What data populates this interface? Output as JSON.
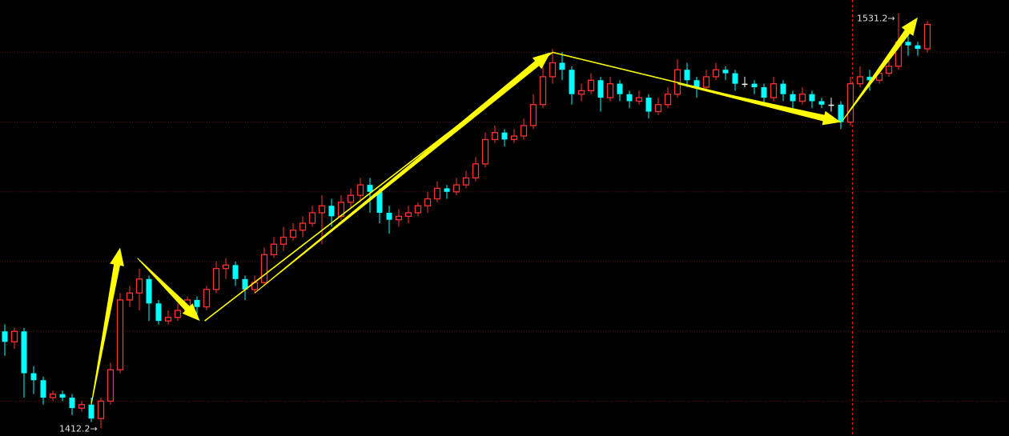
{
  "chart_data": {
    "type": "candlestick",
    "title": "",
    "xlabel": "",
    "ylabel": "",
    "ylim": [
      1410,
      1535
    ],
    "grid_levels": [
      1420,
      1440,
      1460,
      1480,
      1500,
      1520
    ],
    "grid": true,
    "colors": {
      "background": "#000000",
      "up": "#ff3232",
      "down": "#00ffff",
      "doji": "#ffffff",
      "grid": "#5a1414",
      "annotation": "#ffff00",
      "marker_line": "#ff2020"
    },
    "ohlc": [
      [
        1440,
        1442,
        1433,
        1437
      ],
      [
        1437,
        1441,
        1435,
        1440
      ],
      [
        1440,
        1441,
        1421,
        1428
      ],
      [
        1428,
        1430,
        1422,
        1426
      ],
      [
        1426,
        1427,
        1419,
        1421
      ],
      [
        1421,
        1423,
        1420,
        1422
      ],
      [
        1422,
        1423,
        1420,
        1421
      ],
      [
        1421,
        1422,
        1416,
        1418
      ],
      [
        1418,
        1420,
        1417,
        1419
      ],
      [
        1419,
        1421,
        1414,
        1415
      ],
      [
        1415,
        1421,
        1412.2,
        1420
      ],
      [
        1420,
        1431,
        1419,
        1429
      ],
      [
        1429,
        1451,
        1428,
        1449
      ],
      [
        1449,
        1453,
        1447,
        1451
      ],
      [
        1451,
        1458,
        1446,
        1455
      ],
      [
        1455,
        1456,
        1443,
        1448
      ],
      [
        1448,
        1449,
        1442,
        1443
      ],
      [
        1443,
        1446,
        1442,
        1444
      ],
      [
        1444,
        1448,
        1443,
        1446
      ],
      [
        1446,
        1450,
        1445,
        1449
      ],
      [
        1449,
        1450,
        1444,
        1447
      ],
      [
        1447,
        1453,
        1446,
        1452
      ],
      [
        1452,
        1460,
        1451,
        1458
      ],
      [
        1458,
        1461,
        1455,
        1459
      ],
      [
        1459,
        1460,
        1453,
        1455
      ],
      [
        1455,
        1456,
        1449,
        1452
      ],
      [
        1452,
        1456,
        1451,
        1454
      ],
      [
        1454,
        1464,
        1453,
        1462
      ],
      [
        1462,
        1467,
        1461,
        1465
      ],
      [
        1465,
        1470,
        1463,
        1467
      ],
      [
        1467,
        1471,
        1466,
        1469
      ],
      [
        1469,
        1473,
        1467,
        1471
      ],
      [
        1471,
        1476,
        1470,
        1474
      ],
      [
        1474,
        1479,
        1465,
        1476
      ],
      [
        1476,
        1478,
        1470,
        1473
      ],
      [
        1473,
        1479,
        1472,
        1477
      ],
      [
        1477,
        1481,
        1475,
        1479
      ],
      [
        1479,
        1484,
        1477,
        1482
      ],
      [
        1482,
        1484,
        1474,
        1480
      ],
      [
        1480,
        1481,
        1471,
        1474
      ],
      [
        1474,
        1476,
        1468,
        1472
      ],
      [
        1472,
        1475,
        1470,
        1473
      ],
      [
        1473,
        1476,
        1471,
        1474
      ],
      [
        1474,
        1477,
        1473,
        1476
      ],
      [
        1476,
        1480,
        1474,
        1478
      ],
      [
        1478,
        1483,
        1477,
        1481
      ],
      [
        1481,
        1482,
        1478,
        1480
      ],
      [
        1480,
        1484,
        1479,
        1482
      ],
      [
        1482,
        1486,
        1481,
        1484
      ],
      [
        1484,
        1490,
        1483,
        1488
      ],
      [
        1488,
        1497,
        1487,
        1495
      ],
      [
        1495,
        1499,
        1494,
        1497
      ],
      [
        1497,
        1498,
        1493,
        1495
      ],
      [
        1495,
        1498,
        1494,
        1496
      ],
      [
        1496,
        1501,
        1495,
        1499
      ],
      [
        1499,
        1508,
        1498,
        1505
      ],
      [
        1505,
        1516,
        1504,
        1513
      ],
      [
        1513,
        1521,
        1511,
        1517
      ],
      [
        1517,
        1520,
        1512,
        1515
      ],
      [
        1515,
        1516,
        1505,
        1508
      ],
      [
        1508,
        1511,
        1506,
        1509
      ],
      [
        1509,
        1514,
        1508,
        1512
      ],
      [
        1512,
        1513,
        1503,
        1507
      ],
      [
        1507,
        1513,
        1506,
        1511
      ],
      [
        1511,
        1512,
        1506,
        1508
      ],
      [
        1508,
        1509,
        1504,
        1506
      ],
      [
        1506,
        1509,
        1505,
        1507
      ],
      [
        1507,
        1508,
        1501,
        1503
      ],
      [
        1503,
        1507,
        1502,
        1505
      ],
      [
        1505,
        1510,
        1504,
        1508
      ],
      [
        1508,
        1518,
        1507,
        1515
      ],
      [
        1515,
        1517,
        1510,
        1512
      ],
      [
        1512,
        1513,
        1507,
        1510
      ],
      [
        1510,
        1515,
        1509,
        1513
      ],
      [
        1513,
        1517,
        1512,
        1515
      ],
      [
        1515,
        1516,
        1512,
        1514
      ],
      [
        1514,
        1515,
        1509,
        1511
      ],
      [
        1511,
        1513,
        1510,
        1511
      ],
      [
        1511,
        1512,
        1508,
        1510
      ],
      [
        1510,
        1511,
        1505,
        1507
      ],
      [
        1507,
        1513,
        1506,
        1511
      ],
      [
        1511,
        1512,
        1506,
        1508
      ],
      [
        1508,
        1509,
        1504,
        1506
      ],
      [
        1506,
        1510,
        1505,
        1508
      ],
      [
        1508,
        1509,
        1504,
        1506
      ],
      [
        1506,
        1507,
        1504,
        1505
      ],
      [
        1505,
        1507,
        1503,
        1505
      ],
      [
        1505,
        1506,
        1498,
        1500
      ],
      [
        1500,
        1513,
        1499,
        1511
      ],
      [
        1511,
        1516,
        1510,
        1513
      ],
      [
        1513,
        1515,
        1509,
        1512
      ],
      [
        1512,
        1516,
        1511,
        1514
      ],
      [
        1514,
        1518,
        1513,
        1516
      ],
      [
        1516,
        1531.2,
        1515,
        1523
      ],
      [
        1523,
        1525,
        1519,
        1522
      ],
      [
        1522,
        1523,
        1519,
        1521
      ],
      [
        1521,
        1529,
        1520,
        1528
      ]
    ],
    "annotations": {
      "low_label": {
        "text": "1412.2→",
        "index": 10,
        "price": 1412.2
      },
      "high_label": {
        "text": "1531.2→",
        "index": 93,
        "price": 1531.2
      },
      "marker_line_index": 88.2,
      "thick_arrows": [
        {
          "from": [
            9,
            1419
          ],
          "to": [
            12,
            1464
          ]
        },
        {
          "from": [
            13.8,
            1461
          ],
          "to": [
            20.3,
            1443
          ]
        },
        {
          "from": [
            26,
            1451
          ],
          "to": [
            56.8,
            1520
          ]
        },
        {
          "from": [
            70,
            1511
          ],
          "to": [
            87,
            1500
          ]
        },
        {
          "from": [
            87.2,
            1500.5
          ],
          "to": [
            95,
            1530
          ]
        }
      ],
      "thin_lines": [
        {
          "from": [
            20.8,
            1443
          ],
          "to": [
            57,
            1520
          ]
        },
        {
          "from": [
            57,
            1520
          ],
          "to": [
            87,
            1500
          ]
        }
      ]
    }
  }
}
